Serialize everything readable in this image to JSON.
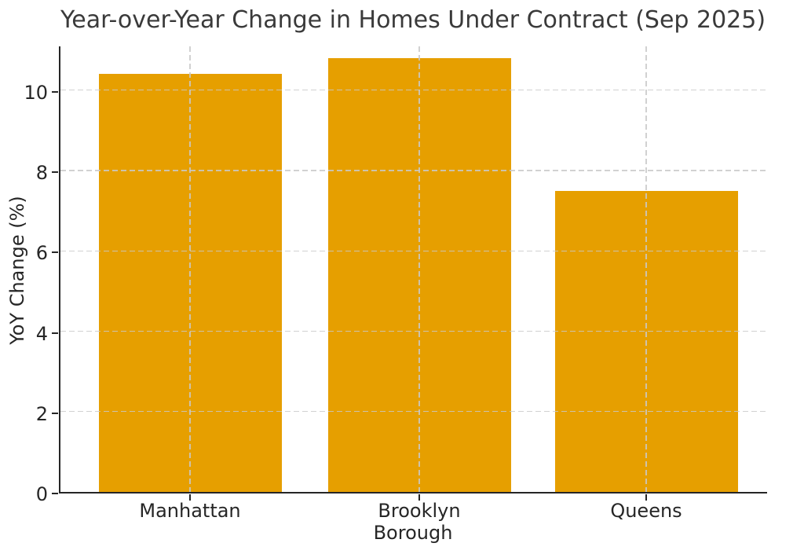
{
  "chart_data": {
    "type": "bar",
    "title": "Year-over-Year Change in Homes Under Contract (Sep 2025)",
    "categories": [
      "Manhattan",
      "Brooklyn",
      "Queens"
    ],
    "values": [
      10.4,
      10.8,
      7.5
    ],
    "xlabel": "Borough",
    "ylabel": "YoY Change (%)",
    "ylim": [
      0,
      11.13
    ],
    "yticks": [
      0,
      2,
      4,
      6,
      8,
      10
    ],
    "grid": "dashed, on both axes, drawn over bars",
    "legend": "none",
    "bar_color": "#E69F00"
  },
  "colors": {
    "bar": "#E69F00",
    "text": "#262626",
    "title_text": "#3a3a3a",
    "grid": "#c9c9c9",
    "spine": "#262626",
    "background": "#ffffff"
  }
}
